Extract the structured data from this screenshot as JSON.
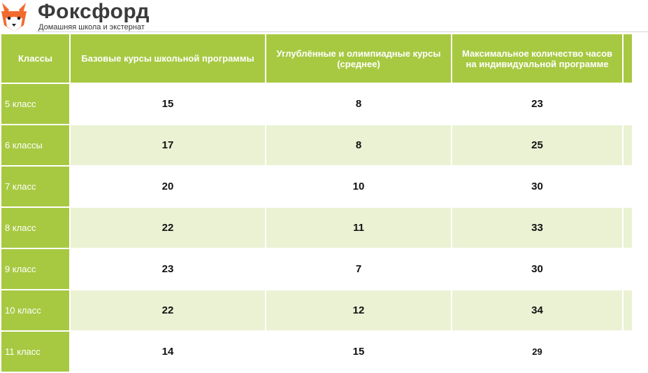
{
  "header": {
    "brand": "Фоксфорд",
    "tagline": "Домашняя школа и экстернат"
  },
  "table": {
    "headers": [
      "Классы",
      "Базовые курсы школьной программы",
      "Углублённые и олимпиадные курсы (среднее)",
      "Максимальное количество часов на индивидуальной программе"
    ],
    "rows": [
      {
        "grade": "5 класс",
        "base": "15",
        "advanced": "8",
        "max": "23"
      },
      {
        "grade": "6 классы",
        "base": "17",
        "advanced": "8",
        "max": "25"
      },
      {
        "grade": "7 класс",
        "base": "20",
        "advanced": "10",
        "max": "30"
      },
      {
        "grade": "8 класс",
        "base": "22",
        "advanced": "11",
        "max": "33"
      },
      {
        "grade": "9 класс",
        "base": "23",
        "advanced": "7",
        "max": "30"
      },
      {
        "grade": "10 класс",
        "base": "22",
        "advanced": "12",
        "max": "34"
      },
      {
        "grade": "11 класс",
        "base": "14",
        "advanced": "15",
        "max": "29"
      }
    ]
  },
  "colors": {
    "accent_green": "#a7c942",
    "row_alt": "#eaf2d3",
    "fox_orange": "#f26a2e"
  },
  "icons": {
    "logo": "fox-logo-icon"
  }
}
